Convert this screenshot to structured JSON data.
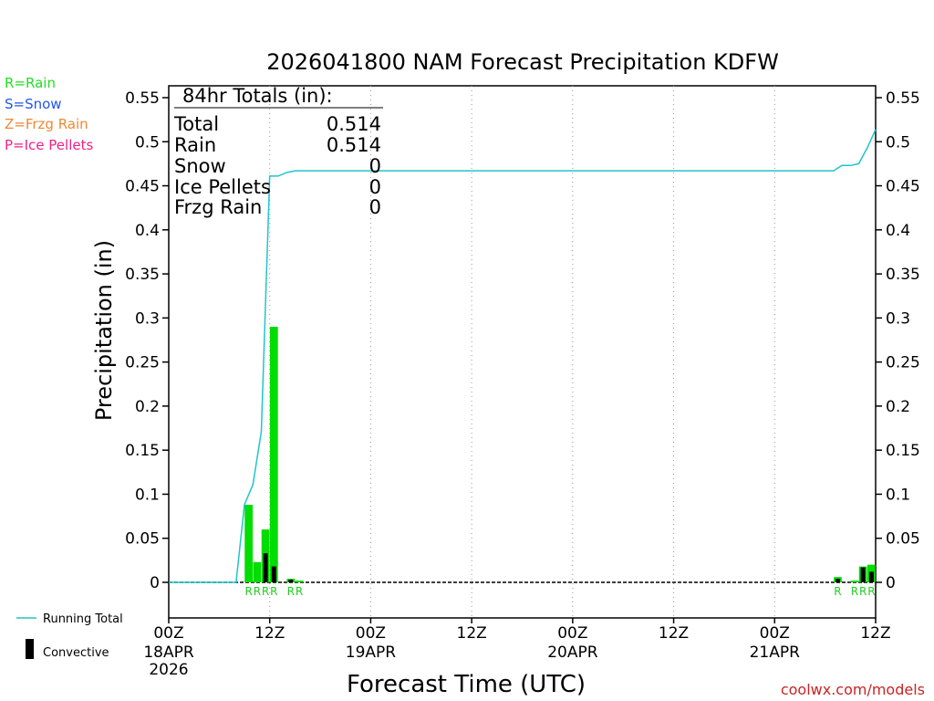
{
  "chart_data": {
    "type": "bar",
    "title": "2026041800 NAM Forecast Precipitation KDFW",
    "xlabel": "Forecast Time (UTC)",
    "ylabel": "Precipitation (in)",
    "ylim": [
      -0.04,
      0.57
    ],
    "xlim_hours": [
      0,
      84
    ],
    "y_ticks": [
      "0",
      "0.05",
      "0.1",
      "0.15",
      "0.2",
      "0.25",
      "0.3",
      "0.35",
      "0.4",
      "0.45",
      "0.5",
      "0.55"
    ],
    "y_tick_values": [
      0,
      0.05,
      0.1,
      0.15,
      0.2,
      0.25,
      0.3,
      0.35,
      0.4,
      0.45,
      0.5,
      0.55
    ],
    "x_ticks": [
      {
        "hour": 0,
        "label": "00Z",
        "sub": [
          "18APR",
          "2026"
        ]
      },
      {
        "hour": 12,
        "label": "12Z",
        "sub": []
      },
      {
        "hour": 24,
        "label": "00Z",
        "sub": [
          "19APR"
        ]
      },
      {
        "hour": 36,
        "label": "12Z",
        "sub": []
      },
      {
        "hour": 48,
        "label": "00Z",
        "sub": [
          "20APR"
        ]
      },
      {
        "hour": 60,
        "label": "12Z",
        "sub": []
      },
      {
        "hour": 72,
        "label": "00Z",
        "sub": [
          "21APR"
        ]
      },
      {
        "hour": 84,
        "label": "12Z",
        "sub": []
      }
    ],
    "grid_hours": [
      12,
      24,
      36,
      48,
      60,
      72
    ],
    "bars": [
      {
        "hour": 9.5,
        "total": 0.088,
        "convective": 0.0,
        "ptype": "R"
      },
      {
        "hour": 10.5,
        "total": 0.023,
        "convective": 0.0,
        "ptype": "R"
      },
      {
        "hour": 11.5,
        "total": 0.06,
        "convective": 0.033,
        "ptype": "R"
      },
      {
        "hour": 12.5,
        "total": 0.29,
        "convective": 0.018,
        "ptype": "R"
      },
      {
        "hour": 14.5,
        "total": 0.004,
        "convective": 0.003,
        "ptype": "R"
      },
      {
        "hour": 15.5,
        "total": 0.002,
        "convective": 0.0,
        "ptype": "R"
      },
      {
        "hour": 79.5,
        "total": 0.006,
        "convective": 0.004,
        "ptype": "R"
      },
      {
        "hour": 81.5,
        "total": 0.002,
        "convective": 0.0,
        "ptype": "R"
      },
      {
        "hour": 82.5,
        "total": 0.018,
        "convective": 0.017,
        "ptype": "R"
      },
      {
        "hour": 83.5,
        "total": 0.02,
        "convective": 0.012,
        "ptype": "R"
      }
    ],
    "running_total": {
      "hours": [
        0,
        8,
        9,
        10,
        11,
        12,
        13,
        14,
        15,
        16,
        18,
        78,
        79,
        80,
        81,
        82,
        83,
        84
      ],
      "values": [
        0,
        0,
        0.088,
        0.111,
        0.171,
        0.461,
        0.461,
        0.465,
        0.467,
        0.467,
        0.467,
        0.467,
        0.467,
        0.473,
        0.473,
        0.475,
        0.493,
        0.514
      ]
    },
    "totals_box": {
      "header": "84hr Totals (in):",
      "rows": [
        {
          "label": "Total",
          "value": "0.514"
        },
        {
          "label": "Rain",
          "value": "0.514"
        },
        {
          "label": "Snow",
          "value": "0"
        },
        {
          "label": "Ice Pellets",
          "value": "0"
        },
        {
          "label": "Frzg Rain",
          "value": "0"
        }
      ]
    },
    "ptype_legend": [
      {
        "text": "R=Rain",
        "color": "#22dd22"
      },
      {
        "text": "S=Snow",
        "color": "#2255ee"
      },
      {
        "text": "Z=Frzg Rain",
        "color": "#ee8833"
      },
      {
        "text": "P=Ice Pellets",
        "color": "#ee2288"
      }
    ],
    "series_legend": {
      "running_total": "Running Total",
      "convective": "Convective"
    },
    "colors": {
      "bar": "#00dd00",
      "convective": "#000000",
      "running_total": "#22c4cc",
      "grid": "#999999",
      "ptype_label": "#22cc22",
      "credit": "#cc2222"
    },
    "credit": "coolwx.com/models"
  }
}
